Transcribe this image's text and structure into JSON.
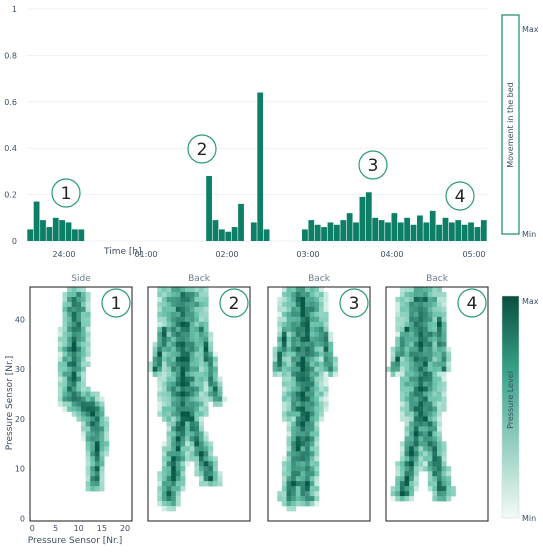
{
  "colors": {
    "bar": "#0e7f67",
    "accent": "#1b8a6b",
    "axis_text": "#3d4f66",
    "panel_title": "#6b7c93",
    "heat_high": "#0a5a48",
    "heat_low": "#eaf6f2"
  },
  "chart_data": [
    {
      "type": "bar",
      "title": "",
      "xlabel": "Time [h]",
      "ylabel": "",
      "ylim": [
        0,
        1
      ],
      "yticks": [
        "0",
        "0.2",
        "0.4",
        "0.6",
        "0.8",
        "1"
      ],
      "xticks": [
        "24:00",
        "01:00",
        "02:00",
        "03:00",
        "04:00",
        "05:00"
      ],
      "colorbar": {
        "label": "Movement in the bed",
        "max": "Max",
        "min": "Min"
      },
      "markers": [
        "1",
        "2",
        "3",
        "4"
      ],
      "series": [
        {
          "values": [
            0.05,
            0.17,
            0.09,
            0.06,
            0.1,
            0.09,
            0.08,
            0.05,
            0.05,
            0,
            0,
            0,
            0,
            0,
            0,
            0,
            0,
            0,
            0,
            0,
            0,
            0,
            0,
            0,
            0,
            0,
            0,
            0,
            0.28,
            0.09,
            0.05,
            0.04,
            0.06,
            0.16,
            0,
            0.08,
            0.64,
            0.05,
            0,
            0,
            0,
            0,
            0,
            0.05,
            0.09,
            0.07,
            0.06,
            0.08,
            0.07,
            0.09,
            0.12,
            0.08,
            0.19,
            0.21,
            0.1,
            0.09,
            0.08,
            0.12,
            0.08,
            0.1,
            0.07,
            0.11,
            0.08,
            0.13,
            0.07,
            0.1,
            0.08,
            0.09,
            0.07,
            0.08,
            0.06,
            0.09
          ]
        }
      ]
    },
    {
      "type": "heatmap",
      "xlabel": "Pressure Sensor [Nr.]",
      "ylabel": "Pressure Sensor [Nr.]",
      "xticks": [
        "0",
        "5",
        "10",
        "15",
        "20"
      ],
      "yticks": [
        "0",
        "10",
        "20",
        "30",
        "40"
      ],
      "colorbar": {
        "label": "Pressure Level",
        "max": "Max",
        "min": "Min"
      },
      "panels": [
        {
          "title": "Side",
          "marker": "1"
        },
        {
          "title": "Back",
          "marker": "2"
        },
        {
          "title": "Back",
          "marker": "3"
        },
        {
          "title": "Back",
          "marker": "4"
        }
      ]
    }
  ]
}
